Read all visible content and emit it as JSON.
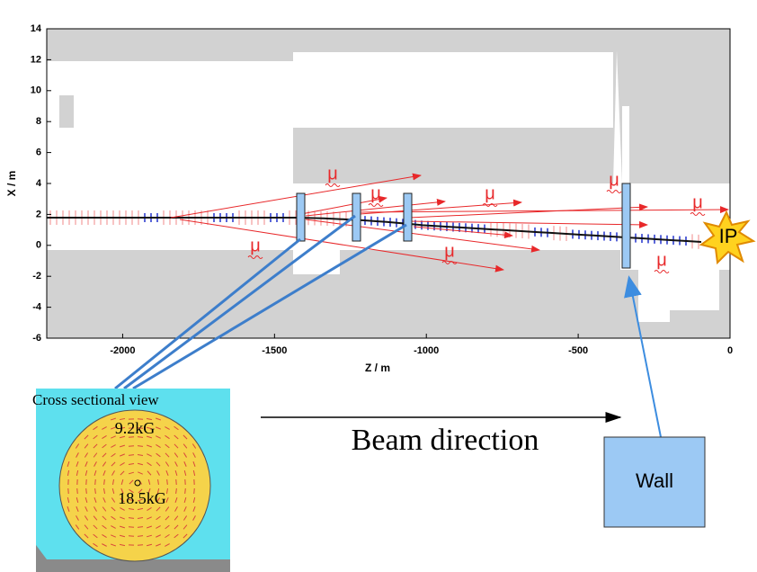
{
  "plot": {
    "xlabel": "Z / m",
    "ylabel": "X / m",
    "xlim": [
      -2250,
      0
    ],
    "ylim": [
      -6,
      14
    ],
    "xticks": [
      -2000,
      -1500,
      -1000,
      -500,
      0
    ],
    "yticks": [
      -6,
      -4,
      -2,
      0,
      2,
      4,
      6,
      8,
      10,
      12,
      14
    ]
  },
  "annotations": {
    "muons": [
      "μ",
      "μ",
      "μ",
      "μ",
      "μ",
      "μ",
      "μ",
      "μ"
    ],
    "ip": "IP"
  },
  "inset": {
    "title": "Cross sectional  view",
    "field_outer": "9.2kG",
    "field_center": "18.5kG"
  },
  "beam_direction": "Beam direction",
  "wall": "Wall"
}
